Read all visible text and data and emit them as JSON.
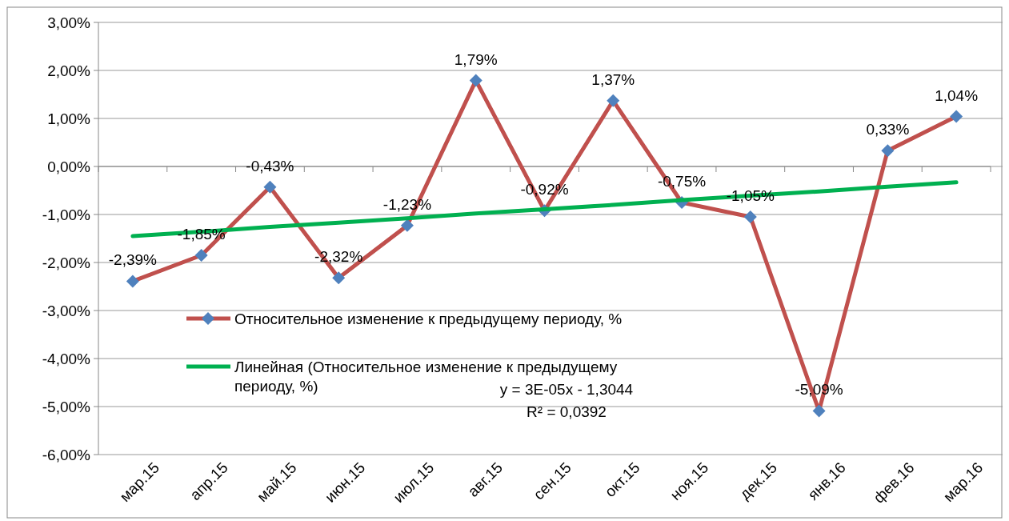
{
  "chart_data": {
    "type": "line",
    "categories": [
      "мар.15",
      "апр.15",
      "май.15",
      "июн.15",
      "июл.15",
      "авг.15",
      "сен.15",
      "окт.15",
      "ноя.15",
      "дек.15",
      "янв.16",
      "фев.16",
      "мар.16"
    ],
    "series": [
      {
        "name": "Относительное изменение к предыдущему периоду, %",
        "color": "#c0504d",
        "values": [
          -2.39,
          -1.85,
          -0.43,
          -2.32,
          -1.23,
          1.79,
          -0.92,
          1.37,
          -0.75,
          -1.05,
          -5.09,
          0.33,
          1.04
        ],
        "value_labels": [
          "-2,39%",
          "-1,85%",
          "-0,43%",
          "-2,32%",
          "-1,23%",
          "1,79%",
          "-0,92%",
          "1,37%",
          "-0,75%",
          "-1,05%",
          "-5,09%",
          "0,33%",
          "1,04%"
        ]
      },
      {
        "name": "Линейная (Относительное изменение к предыдущему периоду, %)",
        "color": "#00b050",
        "marker": "none",
        "values": [
          -1.45,
          -1.36,
          -1.26,
          -1.17,
          -1.08,
          -0.98,
          -0.89,
          -0.8,
          -0.7,
          -0.61,
          -0.52,
          -0.42,
          -0.33
        ]
      }
    ],
    "ylim": [
      -6,
      3
    ],
    "yticks": [
      {
        "value": -6,
        "label": "-6,00%"
      },
      {
        "value": -5,
        "label": "-5,00%"
      },
      {
        "value": -4,
        "label": "-4,00%"
      },
      {
        "value": -3,
        "label": "-3,00%"
      },
      {
        "value": -2,
        "label": "-2,00%"
      },
      {
        "value": -1,
        "label": "-1,00%"
      },
      {
        "value": 0,
        "label": "0,00%"
      },
      {
        "value": 1,
        "label": "1,00%"
      },
      {
        "value": 2,
        "label": "2,00%"
      },
      {
        "value": 3,
        "label": "3,00%"
      }
    ],
    "grid": "y",
    "marker": "diamond",
    "legend": "bottom left",
    "annotations": [
      "y = 3E-05x - 1,3044",
      "R² = 0,0392"
    ]
  }
}
